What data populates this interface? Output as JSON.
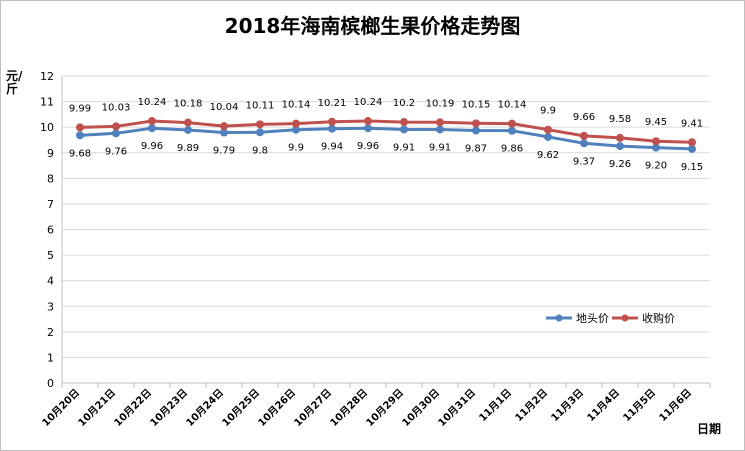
{
  "chart_data": {
    "type": "line",
    "title": "2018年海南槟榔生果价格走势图",
    "ylabel": "元/斤",
    "xlabel": "日期",
    "ylim": [
      0,
      12
    ],
    "yticks": [
      0,
      1,
      2,
      3,
      4,
      5,
      6,
      7,
      8,
      9,
      10,
      11,
      12
    ],
    "grid": true,
    "legend": "right",
    "categories": [
      "10月20日",
      "10月21日",
      "10月22日",
      "10月23日",
      "10月24日",
      "10月25日",
      "10月26日",
      "10月27日",
      "10月28日",
      "10月29日",
      "10月30日",
      "10月31日",
      "11月1日",
      "11月2日",
      "11月3日",
      "11月4日",
      "11月5日",
      "11月6日"
    ],
    "series": [
      {
        "name": "地头价",
        "color": "#4f81bd",
        "values": [
          9.68,
          9.76,
          9.96,
          9.89,
          9.79,
          9.8,
          9.9,
          9.94,
          9.96,
          9.91,
          9.91,
          9.87,
          9.86,
          9.62,
          9.37,
          9.26,
          9.2,
          9.15
        ],
        "labels": [
          "9.68",
          "9.76",
          "9.96",
          "9.89",
          "9.79",
          "9.8",
          "9.9",
          "9.94",
          "9.96",
          "9.91",
          "9.91",
          "9.87",
          "9.86",
          "9.62",
          "9.37",
          "9.26",
          "9.20",
          "9.15"
        ]
      },
      {
        "name": "收购价",
        "color": "#c0504d",
        "values": [
          9.99,
          10.03,
          10.24,
          10.18,
          10.04,
          10.11,
          10.14,
          10.21,
          10.24,
          10.2,
          10.19,
          10.15,
          10.14,
          9.9,
          9.66,
          9.58,
          9.45,
          9.41
        ],
        "labels": [
          "9.99",
          "10.03",
          "10.24",
          "10.18",
          "10.04",
          "10.11",
          "10.14",
          "10.21",
          "10.24",
          "10.2",
          "10.19",
          "10.15",
          "10.14",
          "9.9",
          "9.66",
          "9.58",
          "9.45",
          "9.41"
        ]
      }
    ]
  }
}
